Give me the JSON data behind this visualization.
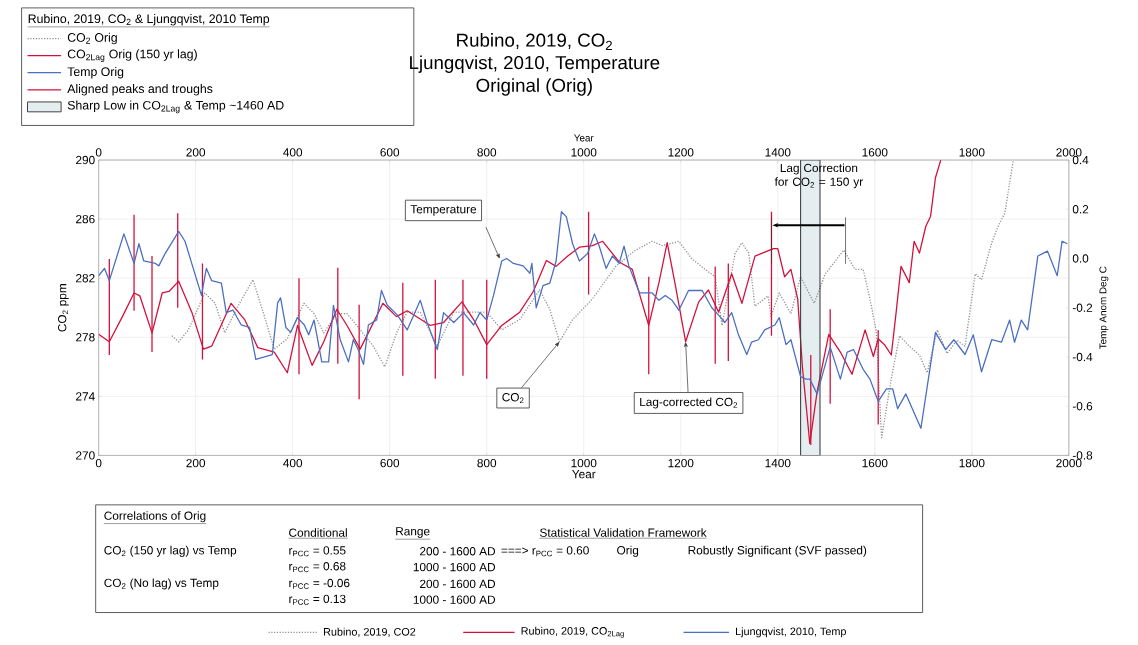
{
  "chart_data": {
    "type": "line",
    "title": "Rubino, 2019, CO$_{2}$",
    "subtitle": "Ljungqvist, 2010, Temperature",
    "xlabel": "Year",
    "x2label": "Year",
    "ylabel": "CO$_{2}$ ppm",
    "y2label": "Temp Anom Deg C",
    "legend_title": "Rubino, 2019, CO$_{2}$ & Ljungqvist, 2010 Temp",
    "legend": "top left",
    "grid": true,
    "xlim": [
      0,
      2000
    ],
    "xticks": [
      0,
      200,
      400,
      600,
      800,
      1000,
      1200,
      1400,
      1600,
      1800,
      2000
    ],
    "x2lim": [
      0,
      2000
    ],
    "x2ticks": [
      0,
      200,
      400,
      600,
      800,
      1000,
      1200,
      1400,
      1600,
      1800,
      2000
    ],
    "ylim": [
      270,
      290
    ],
    "yticks": [
      270,
      274,
      278,
      282,
      286,
      290
    ],
    "y2lim": [
      -0.8,
      0.4
    ],
    "y2ticks": [
      -0.8,
      -0.6,
      -0.4,
      -0.2,
      {
        "value": 0,
        "label": "0.0"
      },
      0.2,
      0.4
    ],
    "series": [
      {
        "name": "CO$_{2}$ Orig",
        "color": "#8c8c8c",
        "line_style": "dotted",
        "x": [
          151,
          165,
          185,
          219,
          240,
          260,
          287,
          318,
          341,
          362,
          389,
          423,
          444,
          464,
          491,
          512,
          532,
          566,
          590,
          614,
          636,
          663,
          698,
          732,
          766,
          800,
          831,
          868,
          909,
          930,
          950,
          977,
          1018,
          1066,
          1107,
          1141,
          1162,
          1196,
          1223,
          1250,
          1271,
          1285,
          1312,
          1326,
          1340,
          1353,
          1380,
          1386,
          1403,
          1427,
          1447,
          1475,
          1498,
          1536,
          1559,
          1576,
          1590,
          1603,
          1614,
          1634,
          1651,
          1671,
          1692,
          1708,
          1729,
          1749,
          1769,
          1786,
          1807,
          1820,
          1841,
          1854,
          1868,
          1885
        ],
        "values": [
          278.1,
          277.7,
          278.5,
          281.0,
          280.3,
          278.3,
          280.1,
          281.9,
          279.5,
          277.2,
          277.9,
          280.3,
          279.6,
          278.3,
          279.6,
          279.6,
          278.8,
          277.4,
          276.0,
          278.3,
          279.7,
          279.7,
          277.4,
          279.7,
          279.7,
          279.7,
          278.5,
          279.2,
          281.2,
          279.9,
          277.7,
          279.2,
          280.6,
          282.8,
          283.9,
          284.5,
          284.2,
          284.5,
          283.3,
          282.6,
          282.1,
          278.8,
          283.7,
          284.4,
          283.7,
          280.1,
          280.8,
          279.4,
          281.0,
          279.6,
          282.1,
          280.3,
          282.3,
          283.9,
          282.6,
          282.6,
          280.6,
          278.4,
          271.2,
          275.2,
          278.1,
          277.4,
          276.8,
          275.6,
          278.5,
          276.9,
          277.8,
          277.4,
          282.3,
          281.9,
          284.4,
          285.5,
          286.4,
          289.9
        ]
      },
      {
        "name": "CO$_{2Lag}$ Orig (150 yr lag)",
        "color": "#d4103c",
        "line_style": "solid",
        "x": [
          0,
          22,
          49,
          73,
          85,
          110,
          131,
          145,
          165,
          192,
          216,
          233,
          273,
          301,
          328,
          362,
          389,
          410,
          440,
          464,
          491,
          512,
          539,
          559,
          586,
          614,
          636,
          684,
          711,
          749,
          773,
          800,
          831,
          868,
          896,
          923,
          943,
          967,
          991,
          1018,
          1039,
          1073,
          1100,
          1134,
          1155,
          1172,
          1189,
          1210,
          1237,
          1257,
          1278,
          1305,
          1326,
          1353,
          1391,
          1400,
          1414,
          1427,
          1441,
          1451,
          1466,
          1481,
          1505,
          1529,
          1553,
          1580,
          1597,
          1607,
          1620,
          1634,
          1644,
          1654,
          1671,
          1681,
          1692,
          1705,
          1715,
          1725,
          1736
        ],
        "values": [
          278.2,
          277.7,
          279.4,
          281.0,
          280.8,
          278.3,
          281.0,
          281.1,
          281.8,
          279.7,
          277.2,
          277.4,
          280.3,
          279.2,
          277.3,
          277.0,
          275.6,
          278.8,
          276.1,
          277.7,
          279.9,
          278.8,
          277.2,
          278.5,
          280.3,
          279.4,
          279.8,
          278.8,
          279.0,
          280.4,
          279.2,
          277.5,
          278.8,
          279.7,
          281.1,
          283.2,
          282.8,
          283.5,
          284.1,
          284.2,
          284.5,
          283.1,
          282.6,
          278.8,
          281.7,
          284.4,
          281.5,
          277.7,
          280.4,
          281.2,
          279.7,
          282.3,
          280.3,
          283.5,
          284.0,
          284.0,
          282.1,
          282.6,
          280.6,
          275.9,
          270.8,
          274.3,
          278.2,
          277.0,
          275.5,
          278.5,
          276.7,
          277.9,
          277.5,
          276.8,
          279.7,
          282.8,
          281.7,
          284.5,
          283.7,
          285.5,
          286.2,
          288.8,
          290.0
        ]
      },
      {
        "name": "Temp Orig",
        "color": "#4a6fc0",
        "line_style": "solid",
        "axis": "y2",
        "x": [
          0,
          12,
          22,
          52,
          73,
          83,
          93,
          117,
          124,
          137,
          165,
          178,
          195,
          212,
          222,
          233,
          253,
          263,
          277,
          294,
          311,
          324,
          341,
          358,
          369,
          375,
          386,
          396,
          410,
          424,
          433,
          444,
          460,
          474,
          484,
          498,
          515,
          525,
          535,
          546,
          556,
          573,
          583,
          595,
          616,
          636,
          663,
          677,
          698,
          711,
          732,
          752,
          773,
          786,
          800,
          814,
          831,
          841,
          855,
          875,
          889,
          893,
          902,
          916,
          930,
          943,
          954,
          964,
          977,
          991,
          1008,
          1022,
          1032,
          1046,
          1059,
          1073,
          1083,
          1093,
          1115,
          1141,
          1155,
          1168,
          1182,
          1196,
          1216,
          1244,
          1264,
          1278,
          1291,
          1305,
          1319,
          1336,
          1346,
          1360,
          1373,
          1394,
          1403,
          1417,
          1427,
          1447,
          1458,
          1466,
          1481,
          1508,
          1529,
          1543,
          1556,
          1576,
          1590,
          1607,
          1624,
          1637,
          1647,
          1664,
          1695,
          1725,
          1746,
          1763,
          1786,
          1803,
          1820,
          1841,
          1861,
          1878,
          1888,
          1902,
          1915,
          1936,
          1956,
          1976,
          1986,
          1997
        ],
        "values": [
          -0.07,
          -0.04,
          -0.09,
          0.1,
          -0.02,
          0.06,
          -0.01,
          -0.02,
          -0.03,
          0.02,
          0.11,
          0.07,
          -0.04,
          -0.15,
          -0.04,
          -0.09,
          -0.1,
          -0.22,
          -0.21,
          -0.27,
          -0.28,
          -0.41,
          -0.4,
          -0.39,
          -0.18,
          -0.16,
          -0.28,
          -0.3,
          -0.24,
          -0.27,
          -0.31,
          -0.25,
          -0.42,
          -0.42,
          -0.19,
          -0.33,
          -0.42,
          -0.33,
          -0.37,
          -0.43,
          -0.27,
          -0.25,
          -0.13,
          -0.19,
          -0.23,
          -0.29,
          -0.17,
          -0.26,
          -0.37,
          -0.22,
          -0.26,
          -0.22,
          -0.27,
          -0.22,
          -0.25,
          -0.15,
          -0.01,
          0.0,
          -0.02,
          -0.03,
          -0.06,
          -0.02,
          -0.2,
          -0.11,
          -0.1,
          -0.01,
          0.19,
          0.17,
          0.06,
          -0.01,
          0.02,
          0.1,
          0.05,
          -0.04,
          0.01,
          -0.02,
          0.05,
          -0.03,
          -0.14,
          -0.14,
          -0.17,
          -0.15,
          -0.17,
          -0.21,
          -0.13,
          -0.13,
          -0.2,
          -0.23,
          -0.26,
          -0.22,
          -0.31,
          -0.39,
          -0.34,
          -0.33,
          -0.29,
          -0.27,
          -0.24,
          -0.35,
          -0.33,
          -0.48,
          -0.49,
          -0.49,
          -0.55,
          -0.36,
          -0.49,
          -0.38,
          -0.37,
          -0.45,
          -0.49,
          -0.58,
          -0.53,
          -0.53,
          -0.61,
          -0.55,
          -0.69,
          -0.3,
          -0.37,
          -0.33,
          -0.39,
          -0.31,
          -0.46,
          -0.33,
          -0.34,
          -0.25,
          -0.34,
          -0.25,
          -0.29,
          0.01,
          0.03,
          -0.07,
          0.07,
          0.06
        ]
      },
      {
        "name": "Aligned peaks and troughs",
        "color": "#d4103c",
        "line_style": "solid",
        "x": [
          22,
          22,
          null,
          73,
          73,
          null,
          110,
          110,
          null,
          163,
          163,
          null,
          214,
          214,
          null,
          413,
          413,
          null,
          493,
          493,
          null,
          537,
          537,
          null,
          627,
          627,
          null,
          694,
          694,
          null,
          751,
          751,
          null,
          800,
          800,
          null,
          1010,
          1010,
          null,
          1134,
          1134,
          null,
          1271,
          1271,
          null,
          1298,
          1298,
          null,
          1387,
          1387,
          null,
          1468,
          1468,
          null,
          1508,
          1508,
          null,
          1607,
          1607
        ],
        "values": [
          276.8,
          283.3,
          null,
          279.8,
          286.3,
          null,
          277.0,
          283.5,
          null,
          280.0,
          286.4,
          null,
          276.5,
          283.0,
          null,
          275.5,
          282.0,
          null,
          276.2,
          282.7,
          null,
          273.8,
          280.2,
          null,
          275.4,
          281.7,
          null,
          275.2,
          281.9,
          null,
          275.4,
          281.9,
          null,
          275.2,
          281.9,
          null,
          280.9,
          286.5,
          null,
          275.5,
          282.1,
          null,
          276.2,
          282.8,
          null,
          276.4,
          283.0,
          null,
          278.1,
          286.5,
          null,
          270.7,
          276.8,
          null,
          273.5,
          279.9,
          null,
          272.1,
          278.5
        ]
      }
    ],
    "bands": [
      {
        "axis": "x",
        "from": 1447,
        "to": 1487,
        "label": "Sharp Low in CO$_{2Lag}$ & Temp ~1460 AD",
        "color": "#e4eef0"
      }
    ],
    "annotations": [
      "Original (Orig)",
      "Rubino, 2019, CO2",
      "Rubino, 2019, CO$_{2Lag}$",
      "Ljungqvist, 2010, Temp",
      "Correlations of Orig",
      "Conditional",
      "Range",
      "Statistical Validation Framework",
      "CO$_{2}$ (150 yr lag) vs Temp",
      "r$_{PCC}$ = 0.55",
      "200 - 1600 AD",
      "===> r$_{PCC}$ = 0.60",
      "Orig",
      "Robustly Significant (SVF passed)",
      "r$_{PCC}$ = 0.68",
      "1000 - 1600 AD",
      "CO$_{2}$ (No lag) vs Temp",
      "r$_{PCC}$ = -0.06",
      "200 - 1600 AD",
      "r$_{PCC}$ = 0.13",
      "1000 - 1600 AD",
      "Lag Correction for CO$_{2}$ = 150 yr",
      "Temperature",
      {
        "text": "CO$_{2}$",
        "x": 950,
        "y": 277.7
      },
      {
        "text": "Lag-corrected CO$_{2}$",
        "x": 1210,
        "y": 277.7
      }
    ]
  }
}
